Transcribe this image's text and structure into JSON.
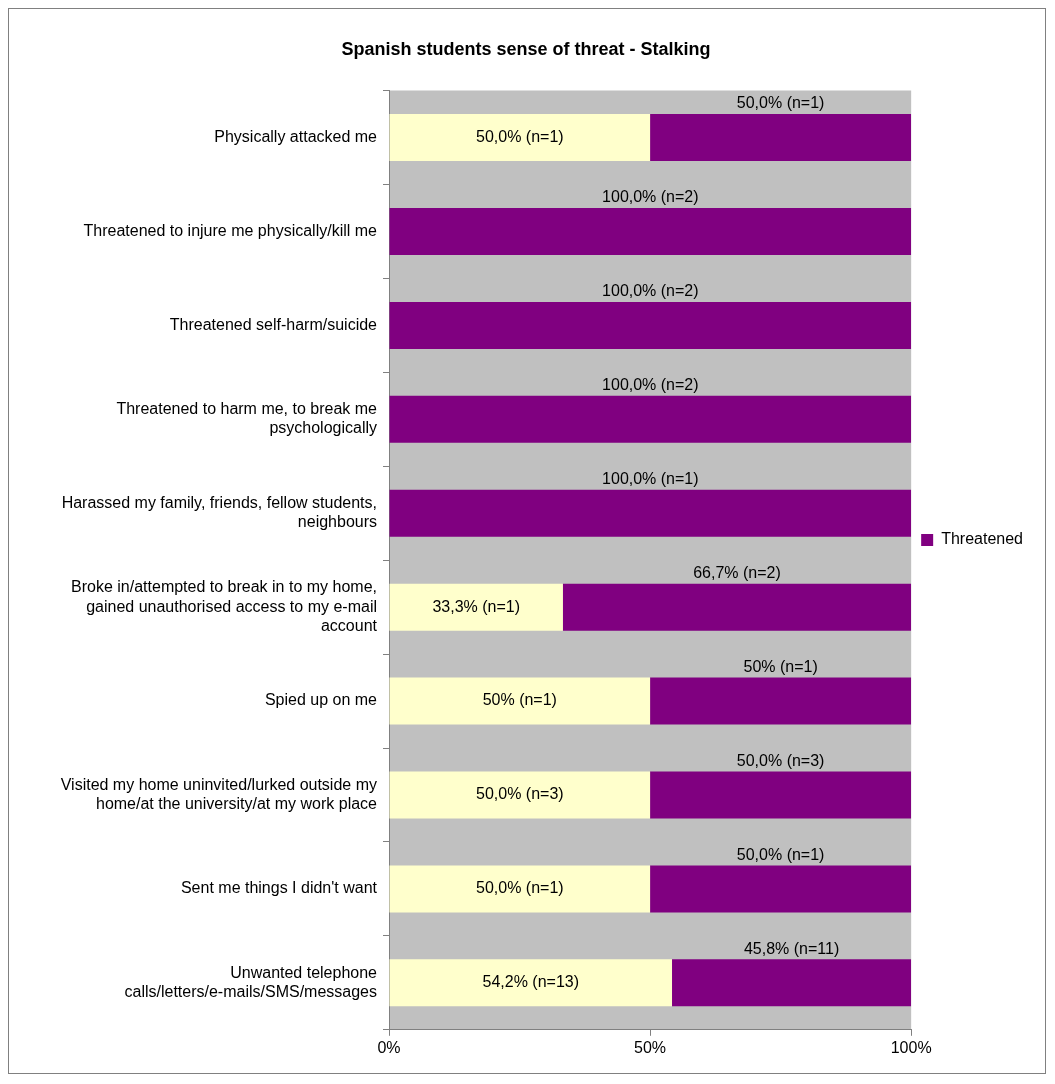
{
  "chart_data": {
    "type": "bar",
    "orientation": "horizontal",
    "stacked": true,
    "title": "Spanish students sense of threat - Stalking",
    "categories": [
      "Physically attacked me",
      "Threatened to injure me physically/kill me",
      "Threatened self-harm/suicide",
      "Threatened to harm me, to break me psychologically",
      "Harassed my family, friends, fellow students, neighbours",
      "Broke in/attempted to break in to my home, gained unauthorised access to my e-mail account",
      "Spied up on me",
      "Visited my home uninvited/lurked outside my home/at the university/at my work place",
      "Sent me things I didn't want",
      "Unwanted telephone calls/letters/e-mails/SMS/messages"
    ],
    "series": [
      {
        "color": "#ffffcc",
        "values": [
          50,
          0,
          0,
          0,
          0,
          33.3,
          50,
          50,
          50,
          54.2
        ],
        "value_labels": [
          "50,0% (n=1)",
          null,
          null,
          null,
          null,
          "33,3% (n=1)",
          "50% (n=1)",
          "50,0% (n=3)",
          "50,0% (n=1)",
          "54,2% (n=13)"
        ]
      },
      {
        "name": "Threatened",
        "color": "#800080",
        "values": [
          50,
          100,
          100,
          100,
          100,
          66.7,
          50,
          50,
          50,
          45.8
        ],
        "value_labels": [
          "50,0% (n=1)",
          "100,0% (n=2)",
          "100,0% (n=2)",
          "100,0% (n=2)",
          "100,0% (n=1)",
          "66,7% (n=2)",
          "50% (n=1)",
          "50,0% (n=3)",
          "50,0% (n=1)",
          "45,8% (n=11)"
        ]
      }
    ],
    "xlim": [
      0,
      100
    ],
    "xticks": [
      {
        "value": 0,
        "label": "0%"
      },
      {
        "value": 50,
        "label": "50%"
      },
      {
        "value": 100,
        "label": "100%"
      }
    ],
    "grid": false,
    "legend": "right"
  }
}
